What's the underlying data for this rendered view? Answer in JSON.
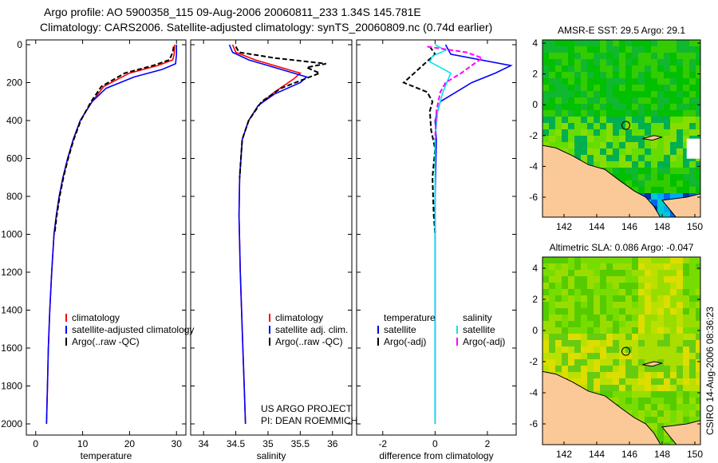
{
  "title_line1": "Argo profile: AO 5900358_115 09-Aug-2006 20060811_233 1.34S 145.781E",
  "title_line2": "Climatology: CARS2006. Satellite-adjusted climatology: synTS_20060809.nc (0.74d earlier)",
  "side_label": "CSIRO 14-Aug-2006 08:36:23",
  "project_line1": "US ARGO PROJECT",
  "project_line2": "PI: DEAN ROEMMICH",
  "colors": {
    "climatology": "#ff0000",
    "satellite": "#0000ff",
    "argo": "#000000",
    "sal_satellite": "#00e5ee",
    "sal_argo": "#ff00ff",
    "land": "#fbc998"
  },
  "chart_data": [
    {
      "type": "line",
      "xlabel": "temperature",
      "xlim": [
        -2,
        32
      ],
      "xticks": [
        "0",
        "10",
        "20",
        "30"
      ],
      "xtickvals": [
        0,
        10,
        20,
        30
      ],
      "ylim": [
        0,
        2050
      ],
      "yticks": [
        "0",
        "200",
        "400",
        "600",
        "800",
        "1000",
        "1200",
        "1400",
        "1600",
        "1800",
        "2000"
      ],
      "ytickvals": [
        0,
        200,
        400,
        600,
        800,
        1000,
        1200,
        1400,
        1600,
        1800,
        2000
      ],
      "legend": [
        "climatology",
        "satellite-adjusted climatology",
        "Argo(..raw -QC)"
      ],
      "series": [
        {
          "name": "climatology",
          "color": "#ff0000",
          "dash": false,
          "x": [
            29.6,
            29.5,
            29.2,
            26,
            20,
            14.5,
            12,
            9.5,
            8,
            6.8,
            5.8,
            5,
            4.4,
            3.9,
            3.4,
            3,
            2.7,
            2.5,
            2.3
          ],
          "depth": [
            0,
            50,
            80,
            110,
            150,
            220,
            300,
            400,
            500,
            600,
            700,
            800,
            900,
            1000,
            1200,
            1400,
            1600,
            1800,
            2000
          ]
        },
        {
          "name": "satellite-adjusted climatology",
          "color": "#0000ff",
          "dash": false,
          "x": [
            30,
            30,
            29.8,
            27,
            21,
            15,
            12,
            9.5,
            8,
            6.8,
            5.8,
            5,
            4.4,
            3.9,
            3.4,
            3,
            2.7,
            2.5,
            2.3
          ],
          "depth": [
            0,
            50,
            100,
            130,
            170,
            230,
            300,
            400,
            500,
            600,
            700,
            800,
            900,
            1000,
            1200,
            1400,
            1600,
            1800,
            2000
          ]
        },
        {
          "name": "Argo(..raw -QC)",
          "color": "#000000",
          "dash": true,
          "x": [
            29.4,
            29.2,
            28.5,
            25,
            19,
            14,
            11.8,
            9.6,
            8.1,
            6.9,
            5.9,
            5.1,
            4.5,
            4
          ],
          " depth": [],
          "depth": [
            10,
            40,
            80,
            110,
            150,
            220,
            300,
            400,
            500,
            600,
            700,
            800,
            900,
            1000
          ]
        }
      ]
    },
    {
      "type": "line",
      "xlabel": "salinity",
      "xlim": [
        33.8,
        36.3
      ],
      "xticks": [
        "34",
        "34.5",
        "35",
        "35.5",
        "36"
      ],
      "xtickvals": [
        34,
        34.5,
        35,
        35.5,
        36
      ],
      "ylim": [
        0,
        2050
      ],
      "legend": [
        "climatology",
        "satellite adj. clim.",
        "Argo(..raw -QC)"
      ],
      "series": [
        {
          "name": "climatology",
          "color": "#ff0000",
          "dash": false,
          "x": [
            34.45,
            34.5,
            34.8,
            35.2,
            35.5,
            35.4,
            35.1,
            34.85,
            34.7,
            34.6,
            34.56,
            34.55,
            34.57,
            34.6,
            34.63,
            34.65
          ],
          "depth": [
            0,
            40,
            80,
            120,
            150,
            180,
            250,
            320,
            400,
            500,
            700,
            900,
            1200,
            1500,
            1800,
            2000
          ]
        },
        {
          "name": "satellite adj. clim.",
          "color": "#0000ff",
          "dash": false,
          "x": [
            34.4,
            34.45,
            34.7,
            35.2,
            35.6,
            35.5,
            35.1,
            34.85,
            34.7,
            34.6,
            34.56,
            34.55,
            34.57,
            34.6,
            34.63,
            34.65
          ],
          "depth": [
            0,
            40,
            80,
            130,
            170,
            200,
            260,
            320,
            400,
            500,
            700,
            900,
            1200,
            1500,
            1800,
            2000
          ]
        },
        {
          "name": "Argo(..raw -QC)",
          "color": "#000000",
          "dash": true,
          "x": [
            34.5,
            34.55,
            35.1,
            35.9,
            35.6,
            35.8,
            35.2,
            34.9,
            34.7,
            34.6,
            34.56
          ],
          "depth": [
            10,
            40,
            70,
            100,
            120,
            150,
            230,
            300,
            400,
            500,
            700
          ]
        }
      ]
    },
    {
      "type": "line",
      "xlabel": "difference from climatology",
      "xlim": [
        -3,
        3.1
      ],
      "xticks": [
        "-2",
        "0",
        "2"
      ],
      "xtickvals": [
        -2,
        0,
        2
      ],
      "ylim": [
        0,
        2050
      ],
      "legend": [
        "temperature",
        "satellite",
        "Argo(-adj)",
        "salinity",
        "satellite",
        "Argo(-adj)"
      ],
      "series": [
        {
          "name": "temperature satellite",
          "color": "#0000ff",
          "dash": false,
          "x": [
            0.4,
            0.6,
            2.9,
            2.3,
            1.4,
            0.8,
            0.2,
            0,
            0.05,
            0,
            0,
            0
          ],
          "depth": [
            0,
            50,
            110,
            150,
            200,
            250,
            300,
            400,
            500,
            800,
            1200,
            2000
          ]
        },
        {
          "name": "temperature Argo(-adj)",
          "color": "#000000",
          "dash": true,
          "x": [
            -0.2,
            0,
            -0.4,
            -1.2,
            -0.3,
            -0.1,
            -0.2,
            -0.15,
            0,
            -0.1,
            -0.05,
            0
          ],
          "depth": [
            10,
            50,
            100,
            200,
            250,
            300,
            350,
            450,
            550,
            700,
            900,
            1000
          ]
        },
        {
          "name": "salinity satellite",
          "color": "#00e5ee",
          "dash": false,
          "x": [
            0,
            0.4,
            -0.1,
            -0.2,
            0.6,
            0.3,
            0.1,
            0,
            0,
            0
          ],
          "depth": [
            0,
            30,
            60,
            90,
            150,
            250,
            350,
            500,
            1000,
            2000
          ]
        },
        {
          "name": "salinity Argo(-adj)",
          "color": "#ff00ff",
          "dash": true,
          "x": [
            -0.3,
            1.2,
            1.8,
            1.4,
            1.0,
            0.4,
            0.2,
            0.05,
            0
          ],
          "depth": [
            10,
            40,
            70,
            110,
            150,
            200,
            250,
            350,
            500
          ]
        }
      ]
    }
  ],
  "maps": [
    {
      "title": "AMSR-E SST: 29.5 Argo: 29.1",
      "xticks": [
        "142",
        "144",
        "146",
        "148",
        "150"
      ],
      "yticks": [
        "4",
        "2",
        "0",
        "-2",
        "-4",
        "-6"
      ]
    },
    {
      "title": "Altimetric SLA: 0.086 Argo: -0.047",
      "xticks": [
        "142",
        "144",
        "146",
        "148",
        "150"
      ],
      "yticks": [
        "4",
        "2",
        "0",
        "-2",
        "-4",
        "-6"
      ]
    }
  ]
}
